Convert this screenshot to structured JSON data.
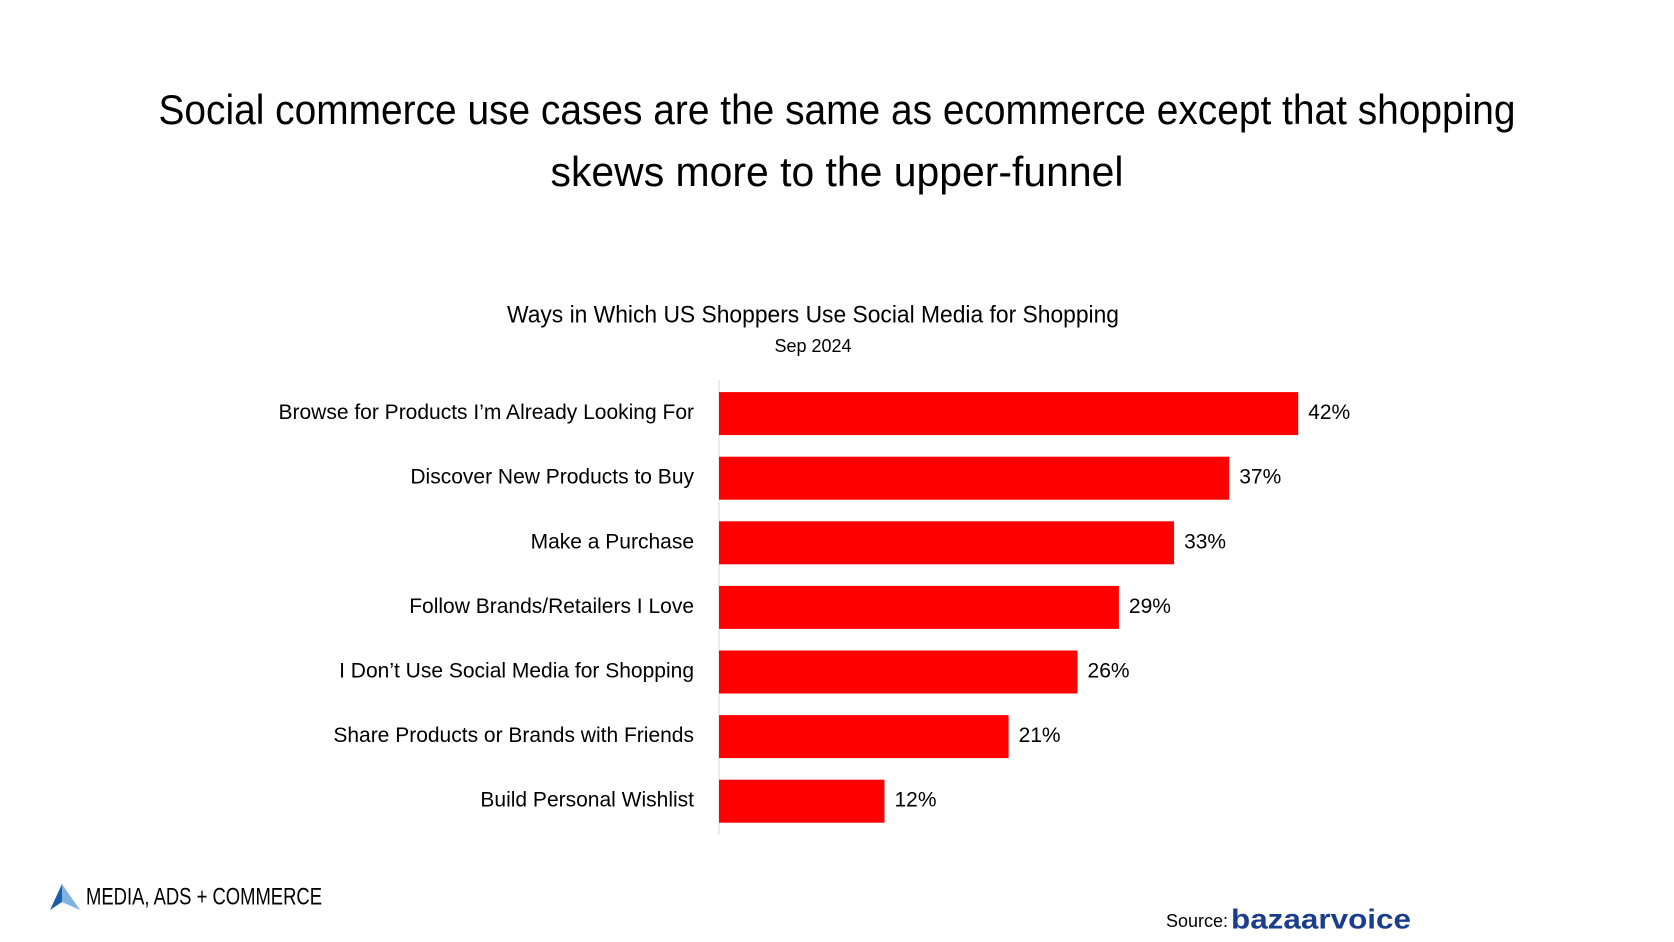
{
  "title": [
    "Social commerce use cases are the same as ecommerce except that shopping",
    "skews more to the upper-funnel"
  ],
  "chart_data": {
    "type": "bar",
    "orientation": "horizontal",
    "title": "Ways in Which US Shoppers Use Social Media for Shopping",
    "subtitle": "Sep 2024",
    "categories": [
      "Browse for Products I’m Already Looking For",
      "Discover New Products to Buy",
      "Make a Purchase",
      "Follow Brands/Retailers I Love",
      "I Don’t Use Social Media for Shopping",
      "Share Products or Brands with Friends",
      "Build Personal Wishlist"
    ],
    "values": [
      42,
      37,
      33,
      29,
      26,
      21,
      12
    ],
    "value_labels": [
      "42%",
      "37%",
      "33%",
      "29%",
      "26%",
      "21%",
      "12%"
    ],
    "color": "#ff0000"
  },
  "footer": {
    "logo": "MEDIA, ADS + COMMERCE",
    "source_label": "Source:",
    "source": "bazaarvoice"
  }
}
